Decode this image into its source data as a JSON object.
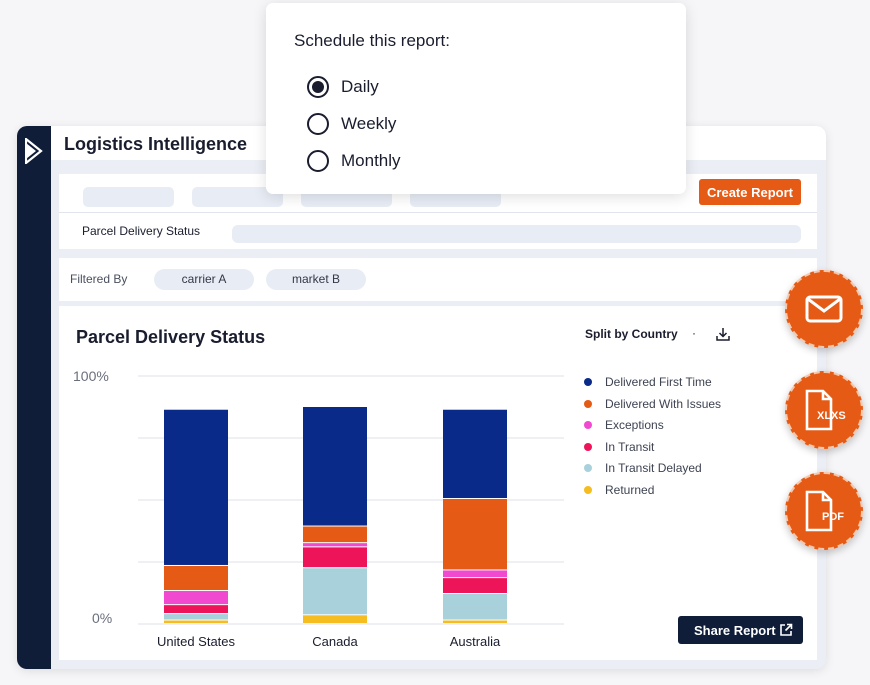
{
  "app": {
    "title": "Logistics Intelligence"
  },
  "toolbar": {
    "create_label": "Create Report",
    "report_name": "Parcel Delivery Status"
  },
  "filters": {
    "label": "Filtered By",
    "chips": [
      "carrier A",
      "market B"
    ]
  },
  "chart_panel": {
    "split_label": "Split by Country",
    "separator": "·",
    "share_label": "Share Report"
  },
  "chart_data": {
    "type": "bar",
    "stacked": true,
    "title": "Parcel Delivery Status",
    "categories": [
      "United States",
      "Canada",
      "Australia"
    ],
    "ylim": [
      0,
      100
    ],
    "yticks": [
      "100%",
      "0%"
    ],
    "grid": true,
    "legend_position": "right",
    "series": [
      {
        "name": "Returned",
        "color": "#f5bd1f",
        "values": [
          1.4,
          3.5,
          1.4
        ]
      },
      {
        "name": "In Transit Delayed",
        "color": "#a8d1dc",
        "values": [
          2.6,
          19,
          10.7
        ]
      },
      {
        "name": "In Transit",
        "color": "#ee145a",
        "values": [
          3.6,
          8.4,
          6.4
        ]
      },
      {
        "name": "Exceptions",
        "color": "#f14ad0",
        "values": [
          5.7,
          1.7,
          3.1
        ]
      },
      {
        "name": "Delivered With Issues",
        "color": "#e55a14",
        "values": [
          10.1,
          6.7,
          28.8
        ]
      },
      {
        "name": "Delivered First Time",
        "color": "#0a2a8a",
        "values": [
          63,
          48.2,
          36
        ]
      }
    ]
  },
  "legend_items": [
    {
      "name": "Delivered First Time",
      "color": "#0a2a8a"
    },
    {
      "name": "Delivered With Issues",
      "color": "#e55a14"
    },
    {
      "name": "Exceptions",
      "color": "#f14ad0"
    },
    {
      "name": "In Transit",
      "color": "#ee145a"
    },
    {
      "name": "In Transit Delayed",
      "color": "#a8d1dc"
    },
    {
      "name": "Returned",
      "color": "#f5bd1f"
    }
  ],
  "export_actions": {
    "xlsx_label": "XLXS",
    "pdf_label": "PDF"
  },
  "schedule": {
    "title": "Schedule this report:",
    "options": [
      {
        "label": "Daily",
        "checked": true
      },
      {
        "label": "Weekly",
        "checked": false
      },
      {
        "label": "Monthly",
        "checked": false
      }
    ]
  },
  "colors": {
    "accent": "#e55a14",
    "navy": "#0f1d38",
    "bar_navy": "#0a2a8a"
  }
}
